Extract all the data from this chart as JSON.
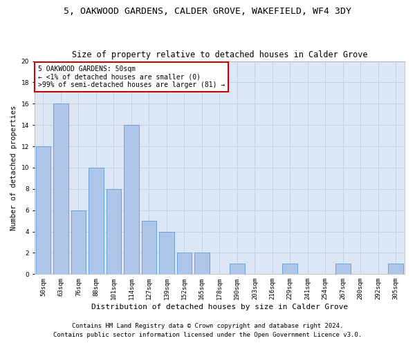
{
  "title_line1": "5, OAKWOOD GARDENS, CALDER GROVE, WAKEFIELD, WF4 3DY",
  "title_line2": "Size of property relative to detached houses in Calder Grove",
  "xlabel": "Distribution of detached houses by size in Calder Grove",
  "ylabel": "Number of detached properties",
  "categories": [
    "50sqm",
    "63sqm",
    "76sqm",
    "88sqm",
    "101sqm",
    "114sqm",
    "127sqm",
    "139sqm",
    "152sqm",
    "165sqm",
    "178sqm",
    "190sqm",
    "203sqm",
    "216sqm",
    "229sqm",
    "241sqm",
    "254sqm",
    "267sqm",
    "280sqm",
    "292sqm",
    "305sqm"
  ],
  "values": [
    12,
    16,
    6,
    10,
    8,
    14,
    5,
    4,
    2,
    2,
    0,
    1,
    0,
    0,
    1,
    0,
    0,
    1,
    0,
    0,
    1
  ],
  "bar_color": "#aec6e8",
  "bar_edge_color": "#5b9bd5",
  "annotation_text": "5 OAKWOOD GARDENS: 50sqm\n← <1% of detached houses are smaller (0)\n>99% of semi-detached houses are larger (81) →",
  "annotation_box_color": "#ffffff",
  "annotation_box_edge": "#cc0000",
  "ylim": [
    0,
    20
  ],
  "yticks": [
    0,
    2,
    4,
    6,
    8,
    10,
    12,
    14,
    16,
    18,
    20
  ],
  "footer_line1": "Contains HM Land Registry data © Crown copyright and database right 2024.",
  "footer_line2": "Contains public sector information licensed under the Open Government Licence v3.0.",
  "background_color": "#ffffff",
  "plot_bg_color": "#dce6f5",
  "grid_color": "#b8c8dd",
  "title_fontsize": 9.5,
  "subtitle_fontsize": 8.5,
  "ylabel_fontsize": 7.5,
  "xlabel_fontsize": 8,
  "tick_fontsize": 6.5,
  "footer_fontsize": 6.5,
  "annotation_fontsize": 7
}
